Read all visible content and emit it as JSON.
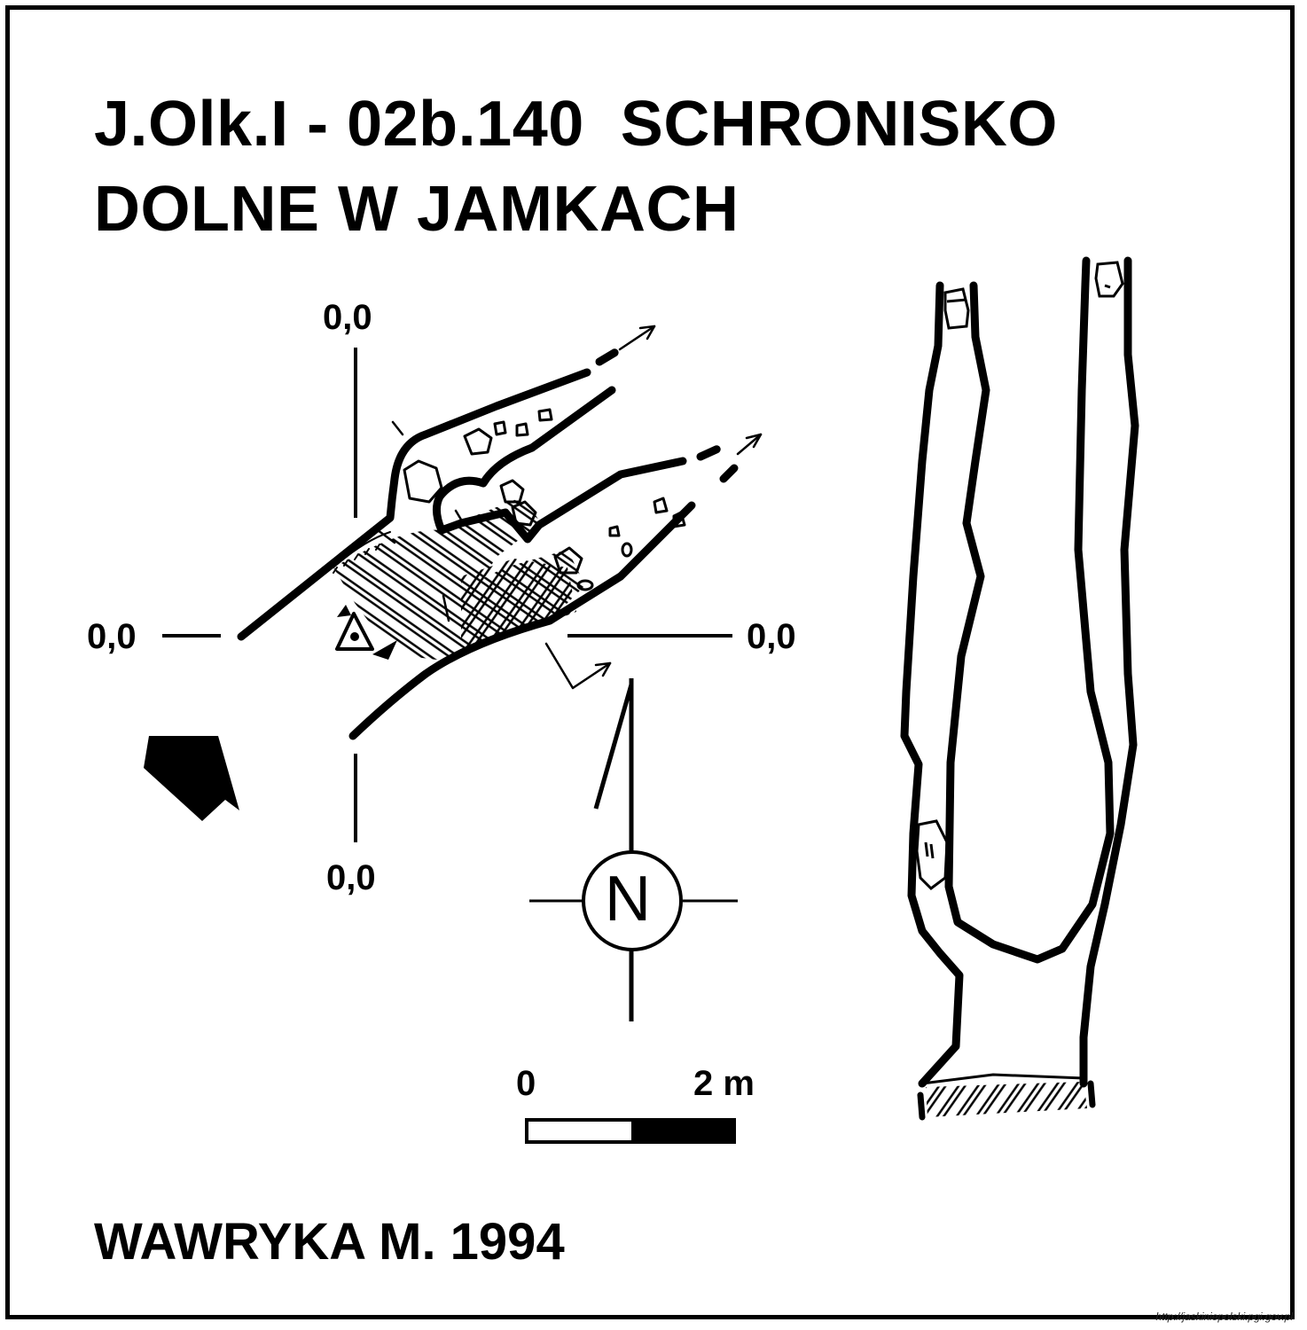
{
  "title": {
    "line1": "J.Olk.I - 02b.140  SCHRONISKO",
    "line2": "DOLNE W JAMKACH"
  },
  "plan": {
    "axis_labels": {
      "top": "0,0",
      "left": "0,0",
      "right": "0,0",
      "bottom": "0,0"
    }
  },
  "north_arrow": {
    "letter": "N"
  },
  "scale_bar": {
    "label_start": "0",
    "label_end": "2 m"
  },
  "author": "WAWRYKA M. 1994",
  "source_url": "http://jaskiniepolski.pgi.gov.pl"
}
